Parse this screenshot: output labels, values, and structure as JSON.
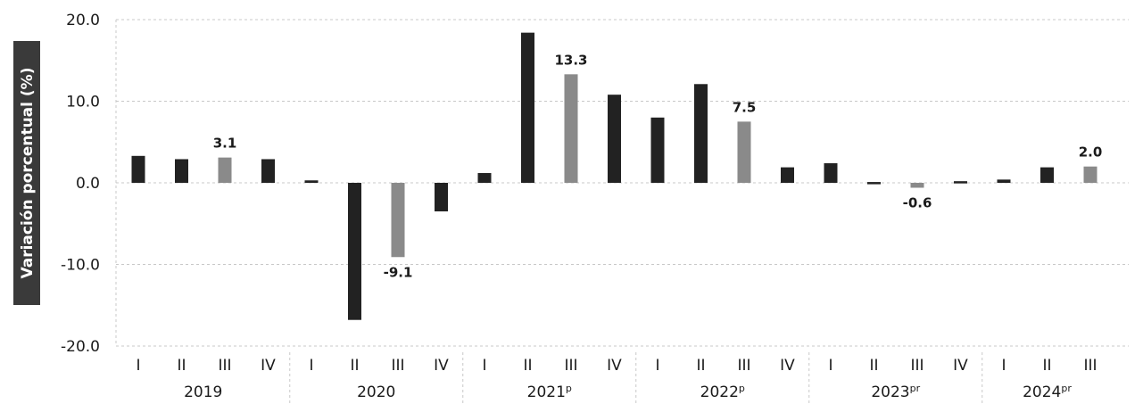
{
  "chart_data": {
    "type": "bar",
    "ylabel": "Variación porcentual (%)",
    "ylim": [
      -20,
      20
    ],
    "yticks": [
      "20.0",
      "10.0",
      "0.0",
      "-10.0",
      "-20.0"
    ],
    "yticks_values": [
      20,
      10,
      0,
      -10,
      -20
    ],
    "years": [
      {
        "label": "2019",
        "sup": ""
      },
      {
        "label": "2020",
        "sup": ""
      },
      {
        "label": "2021",
        "sup": "p"
      },
      {
        "label": "2022",
        "sup": "p"
      },
      {
        "label": "2023",
        "sup": "pr"
      },
      {
        "label": "2024",
        "sup": "pr"
      }
    ],
    "categories": [
      "I",
      "II",
      "III",
      "IV",
      "I",
      "II",
      "III",
      "IV",
      "I",
      "II",
      "III",
      "IV",
      "I",
      "II",
      "III",
      "IV",
      "I",
      "II",
      "III",
      "IV",
      "I",
      "II",
      "III"
    ],
    "values": [
      3.3,
      2.9,
      3.1,
      2.9,
      0.3,
      -16.8,
      -9.1,
      -3.5,
      1.2,
      18.4,
      13.3,
      10.8,
      8.0,
      12.1,
      7.5,
      1.9,
      2.4,
      0.1,
      -0.6,
      0.2,
      0.4,
      1.9,
      2.0
    ],
    "highlight_indices": [
      2,
      6,
      10,
      14,
      18,
      22
    ],
    "data_labels": [
      "3.1",
      "-9.1",
      "13.3",
      "7.5",
      "-0.6",
      "2.0"
    ],
    "colors": {
      "bar": "#222222",
      "highlight": "#8a8a8a",
      "axis_title_bg": "#3a3a3a"
    }
  }
}
